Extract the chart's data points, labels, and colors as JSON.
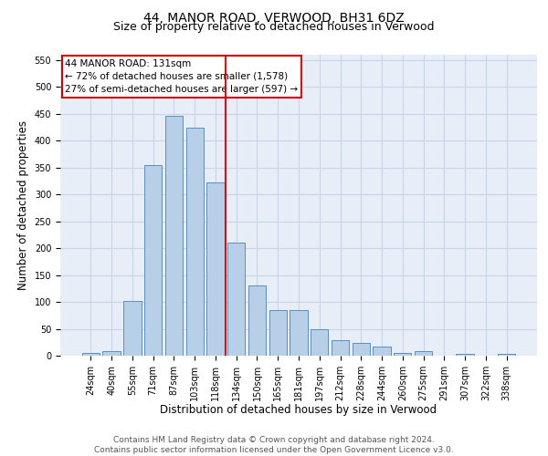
{
  "title": "44, MANOR ROAD, VERWOOD, BH31 6DZ",
  "subtitle": "Size of property relative to detached houses in Verwood",
  "xlabel": "Distribution of detached houses by size in Verwood",
  "ylabel": "Number of detached properties",
  "categories": [
    "24sqm",
    "40sqm",
    "55sqm",
    "71sqm",
    "87sqm",
    "103sqm",
    "118sqm",
    "134sqm",
    "150sqm",
    "165sqm",
    "181sqm",
    "197sqm",
    "212sqm",
    "228sqm",
    "244sqm",
    "260sqm",
    "275sqm",
    "291sqm",
    "307sqm",
    "322sqm",
    "338sqm"
  ],
  "values": [
    5,
    8,
    102,
    355,
    447,
    424,
    323,
    210,
    130,
    85,
    85,
    50,
    29,
    23,
    17,
    5,
    9,
    0,
    4,
    0,
    3
  ],
  "bar_color": "#b8cfe8",
  "bar_edge_color": "#5a8fc0",
  "grid_color": "#c8d4e8",
  "background_color": "#e8eef8",
  "property_label": "44 MANOR ROAD: 131sqm",
  "annotation_line1": "← 72% of detached houses are smaller (1,578)",
  "annotation_line2": "27% of semi-detached houses are larger (597) →",
  "vline_color": "#cc0000",
  "box_color": "#cc0000",
  "ylim": [
    0,
    560
  ],
  "yticks": [
    0,
    50,
    100,
    150,
    200,
    250,
    300,
    350,
    400,
    450,
    500,
    550
  ],
  "footnote": "Contains HM Land Registry data © Crown copyright and database right 2024.\nContains public sector information licensed under the Open Government Licence v3.0.",
  "title_fontsize": 10,
  "subtitle_fontsize": 9,
  "xlabel_fontsize": 8.5,
  "ylabel_fontsize": 8.5,
  "tick_fontsize": 7,
  "annotation_fontsize": 7.5,
  "footnote_fontsize": 6.5
}
